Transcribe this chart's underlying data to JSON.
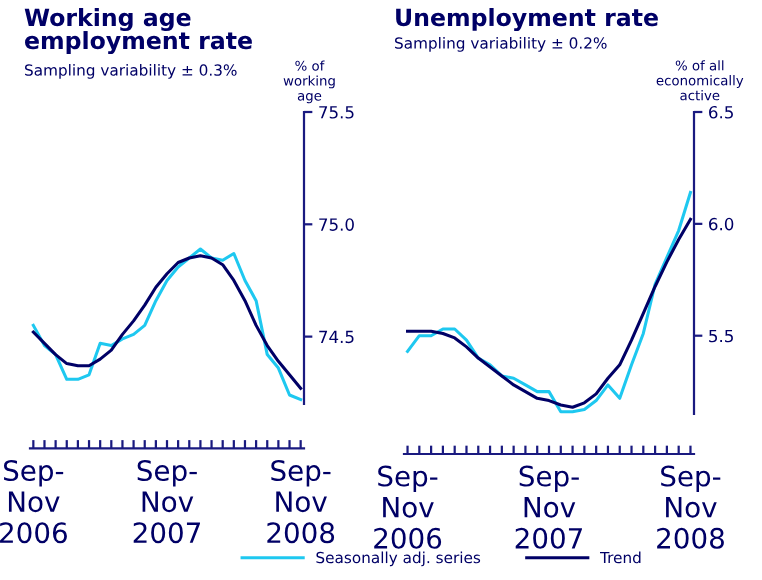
{
  "chart_data": [
    {
      "type": "line",
      "title": "Working age\nemployment rate",
      "subtitle": "Sampling variability ± 0.3%",
      "ylabel": "% of\nworking\nage",
      "categories": [
        "Sep-\nNov\n2006",
        null,
        null,
        null,
        null,
        null,
        null,
        null,
        null,
        null,
        null,
        null,
        "Sep-\nNov\n2007",
        null,
        null,
        null,
        null,
        null,
        null,
        null,
        null,
        null,
        null,
        null,
        "Sep-\nNov\n2008"
      ],
      "series": [
        {
          "name": "Seasonally adj. series",
          "color": "#1ec8f0",
          "values": [
            74.55,
            74.46,
            74.42,
            74.31,
            74.31,
            74.33,
            74.47,
            74.46,
            74.49,
            74.51,
            74.55,
            74.66,
            74.75,
            74.81,
            74.85,
            74.89,
            74.85,
            74.84,
            74.87,
            74.75,
            74.66,
            74.42,
            74.36,
            74.24,
            74.22
          ]
        },
        {
          "name": "Trend",
          "color": "#000066",
          "values": [
            74.52,
            74.47,
            74.42,
            74.38,
            74.37,
            74.37,
            74.4,
            74.44,
            74.51,
            74.57,
            74.64,
            74.72,
            74.78,
            74.83,
            74.85,
            74.86,
            74.85,
            74.82,
            74.75,
            74.66,
            74.55,
            74.46,
            74.39,
            74.33,
            74.27
          ]
        }
      ],
      "ylim": [
        74.2,
        75.5
      ],
      "yticks": [
        74.5,
        {
          "value": 75.0,
          "label": "75.0"
        },
        75.5
      ],
      "grid": false,
      "legend": "bottom",
      "marker": "none",
      "line_style": "solid"
    },
    {
      "type": "line",
      "title": "Unemployment rate",
      "subtitle": "Sampling variability ± 0.2%",
      "ylabel": "% of all\neconomically\nactive",
      "categories": [
        "Sep-\nNov\n2006",
        null,
        null,
        null,
        null,
        null,
        null,
        null,
        null,
        null,
        null,
        null,
        "Sep-\nNov\n2007",
        null,
        null,
        null,
        null,
        null,
        null,
        null,
        null,
        null,
        null,
        null,
        "Sep-\nNov\n2008"
      ],
      "series": [
        {
          "color": "#1ec8f0",
          "values": [
            5.43,
            5.5,
            5.5,
            5.53,
            5.53,
            5.48,
            5.4,
            5.37,
            5.32,
            5.31,
            5.28,
            5.25,
            5.25,
            5.16,
            5.16,
            5.17,
            5.21,
            5.28,
            5.22,
            5.37,
            5.51,
            5.73,
            5.85,
            5.97,
            6.14
          ]
        },
        {
          "color": "#000066",
          "values": [
            5.52,
            5.52,
            5.52,
            5.51,
            5.49,
            5.45,
            5.4,
            5.36,
            5.32,
            5.28,
            5.25,
            5.22,
            5.21,
            5.19,
            5.18,
            5.2,
            5.24,
            5.31,
            5.37,
            5.48,
            5.6,
            5.72,
            5.83,
            5.93,
            6.02
          ]
        }
      ],
      "ylim": [
        5.15,
        6.5
      ],
      "yticks": [
        5.5,
        {
          "value": 6.0,
          "label": "6.0"
        },
        6.5
      ],
      "grid": false,
      "marker": "none",
      "line_style": "solid"
    }
  ]
}
